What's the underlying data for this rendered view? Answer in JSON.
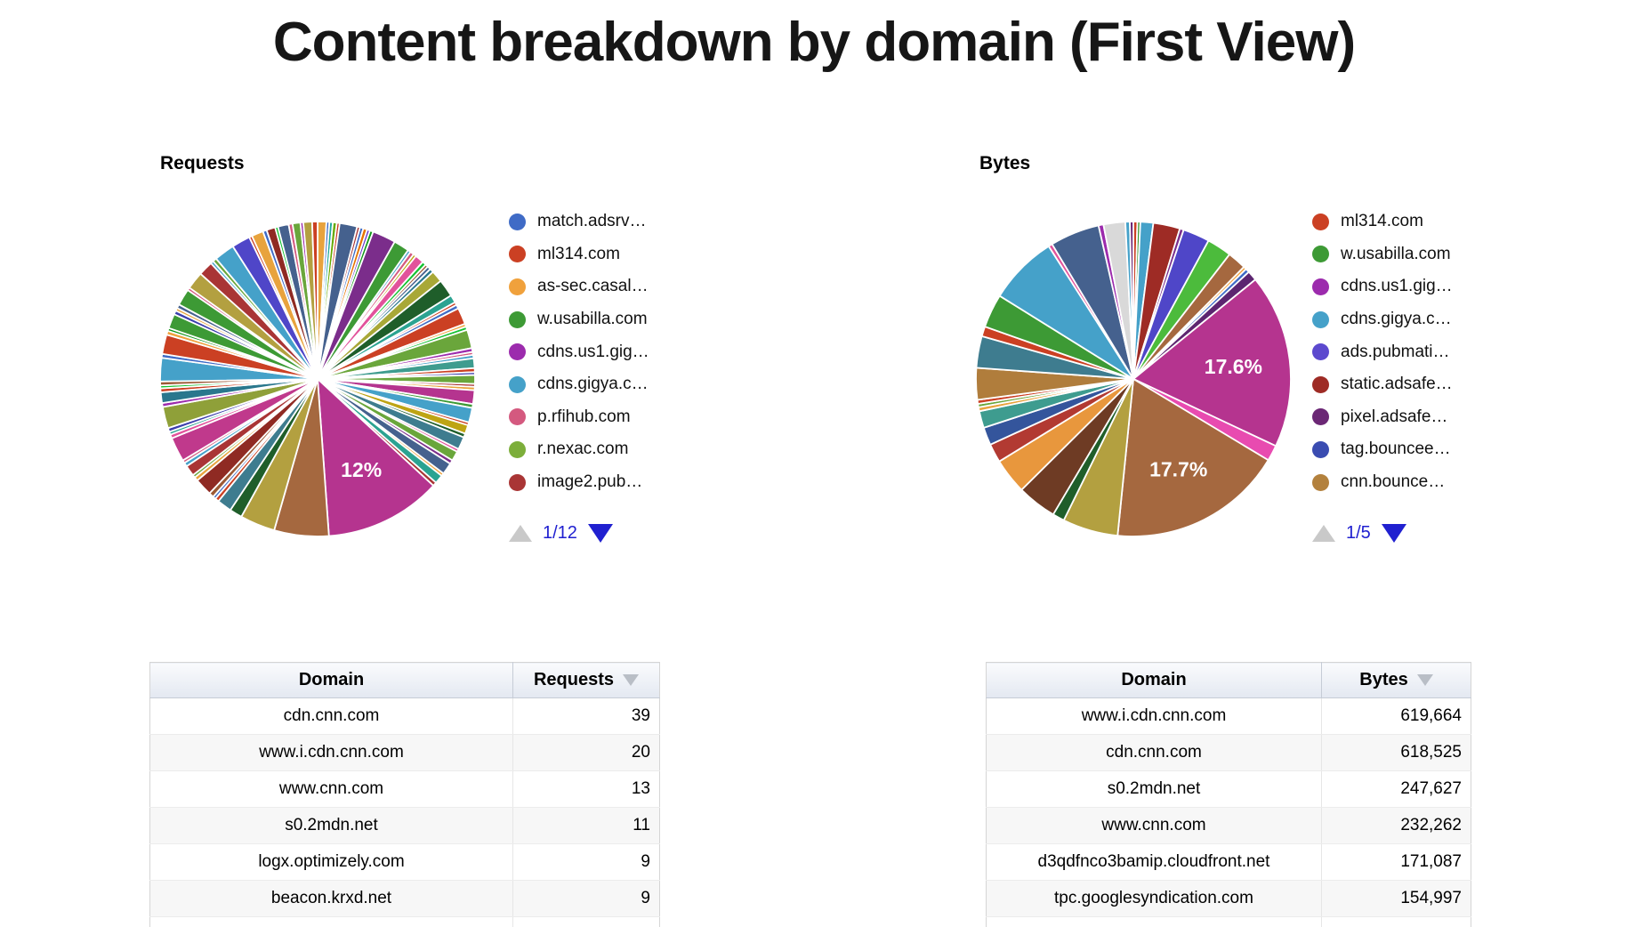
{
  "page_title": "Content breakdown by domain (First View)",
  "colors": {
    "pager_active": "#2020d0",
    "pager_disabled": "#c9c9c9",
    "big_magenta": "#B5348F",
    "big_brown": "#A5683F"
  },
  "chart_data": [
    {
      "type": "pie",
      "title": "Requests",
      "labeled_slices": [
        {
          "label": "12%",
          "color": "#B5348F"
        }
      ],
      "legend": [
        {
          "label": "match.adsrv…",
          "color": "#3F6BC6"
        },
        {
          "label": "ml314.com",
          "color": "#CB4023"
        },
        {
          "label": "as-sec.casal…",
          "color": "#F0A13C"
        },
        {
          "label": "w.usabilla.com",
          "color": "#3D9A35"
        },
        {
          "label": "cdns.us1.gig…",
          "color": "#9C2BAD"
        },
        {
          "label": "cdns.gigya.c…",
          "color": "#45A1C9"
        },
        {
          "label": "p.rfihub.com",
          "color": "#D4597F"
        },
        {
          "label": "r.nexac.com",
          "color": "#7CAE3A"
        },
        {
          "label": "image2.pub…",
          "color": "#A93535"
        }
      ],
      "pager": {
        "label": "1/12",
        "up_enabled": false,
        "down_enabled": true
      },
      "slices": [
        [
          0.9,
          "#E8A33D"
        ],
        [
          0.3,
          "#3F6BC6"
        ],
        [
          0.35,
          "#22AA99"
        ],
        [
          0.4,
          "#66AA00"
        ],
        [
          0.3,
          "#CB4023"
        ],
        [
          1.8,
          "#45618E"
        ],
        [
          0.3,
          "#A93535"
        ],
        [
          0.35,
          "#3F6BC6"
        ],
        [
          0.4,
          "#E67300"
        ],
        [
          0.3,
          "#6633CC"
        ],
        [
          0.35,
          "#109618"
        ],
        [
          2.4,
          "#7B2D8B"
        ],
        [
          1.6,
          "#3D9A35"
        ],
        [
          0.3,
          "#45A1C9"
        ],
        [
          0.4,
          "#D4597F"
        ],
        [
          0.3,
          "#BEA413"
        ],
        [
          0.9,
          "#E2529B"
        ],
        [
          0.4,
          "#16C232"
        ],
        [
          0.3,
          "#9C5935"
        ],
        [
          0.35,
          "#45618E"
        ],
        [
          0.4,
          "#2A778D"
        ],
        [
          1.2,
          "#A8A837"
        ],
        [
          1.8,
          "#1F5E2A"
        ],
        [
          0.8,
          "#2BA391"
        ],
        [
          0.3,
          "#CB4023"
        ],
        [
          0.4,
          "#3F6BC6"
        ],
        [
          1.7,
          "#CB4023"
        ],
        [
          0.3,
          "#F0A13C"
        ],
        [
          0.35,
          "#16C232"
        ],
        [
          1.9,
          "#6AA63B"
        ],
        [
          0.4,
          "#9C2BAD"
        ],
        [
          0.3,
          "#D4597F"
        ],
        [
          0.35,
          "#45A1C9"
        ],
        [
          1.0,
          "#3E9C8F"
        ],
        [
          0.4,
          "#CB4023"
        ],
        [
          0.3,
          "#3B3EAC"
        ],
        [
          0.9,
          "#6AA63B"
        ],
        [
          0.3,
          "#A93535"
        ],
        [
          0.35,
          "#E8A33D"
        ],
        [
          1.4,
          "#B5348F"
        ],
        [
          0.4,
          "#3D9A35"
        ],
        [
          1.5,
          "#45A1C9"
        ],
        [
          0.3,
          "#CB4023"
        ],
        [
          0.9,
          "#BEA413"
        ],
        [
          0.4,
          "#1F5E2A"
        ],
        [
          1.3,
          "#3E7C8F"
        ],
        [
          0.3,
          "#E2529B"
        ],
        [
          1.0,
          "#6AA63B"
        ],
        [
          0.4,
          "#7B2D8B"
        ],
        [
          1.2,
          "#45618E"
        ],
        [
          0.3,
          "#F0A13C"
        ],
        [
          0.9,
          "#2BA391"
        ],
        [
          0.4,
          "#A93535"
        ],
        [
          12,
          "#B5348F",
          "12%"
        ],
        [
          5.6,
          "#A5683F"
        ],
        [
          3.6,
          "#B3A040"
        ],
        [
          1.3,
          "#1F5E2A"
        ],
        [
          1.5,
          "#3E7C8F"
        ],
        [
          0.4,
          "#CB4023"
        ],
        [
          0.3,
          "#3F6BC6"
        ],
        [
          0.5,
          "#9C5935"
        ],
        [
          1.8,
          "#8F2A23"
        ],
        [
          0.4,
          "#E8A33D"
        ],
        [
          0.3,
          "#6AA63B"
        ],
        [
          1.1,
          "#A93535"
        ],
        [
          0.4,
          "#45A1C9"
        ],
        [
          0.3,
          "#D4597F"
        ],
        [
          2.5,
          "#C0398C"
        ],
        [
          0.4,
          "#E2529B"
        ],
        [
          0.3,
          "#2BA391"
        ],
        [
          0.4,
          "#3B3EAC"
        ],
        [
          2.2,
          "#8FA039"
        ],
        [
          0.4,
          "#9C2BAD"
        ],
        [
          1.1,
          "#2A778D"
        ],
        [
          0.4,
          "#CB4023"
        ],
        [
          0.3,
          "#16C232"
        ],
        [
          0.4,
          "#9C5935"
        ],
        [
          2.4,
          "#45A1C9"
        ],
        [
          0.4,
          "#3F6BC6"
        ],
        [
          2.0,
          "#CB4023"
        ],
        [
          0.4,
          "#F0A13C"
        ],
        [
          0.3,
          "#109618"
        ],
        [
          1.5,
          "#3D9A35"
        ],
        [
          0.4,
          "#3B3EAC"
        ],
        [
          0.3,
          "#E8A33D"
        ],
        [
          0.4,
          "#45618E"
        ],
        [
          1.7,
          "#3D9A35"
        ],
        [
          0.3,
          "#D4597F"
        ],
        [
          1.8,
          "#B3A040"
        ],
        [
          1.5,
          "#A93535"
        ],
        [
          0.3,
          "#45A1C9"
        ],
        [
          0.4,
          "#6AA63B"
        ],
        [
          2.1,
          "#45A1C9"
        ],
        [
          1.9,
          "#4F46C8"
        ],
        [
          0.3,
          "#CB4023"
        ],
        [
          1.2,
          "#E8A33D"
        ],
        [
          0.4,
          "#3F6BC6"
        ],
        [
          0.9,
          "#8F2A23"
        ],
        [
          0.3,
          "#16C232"
        ],
        [
          1.1,
          "#45618E"
        ],
        [
          0.4,
          "#D4597F"
        ],
        [
          0.8,
          "#6AA63B"
        ],
        [
          0.3,
          "#9C2BAD"
        ],
        [
          0.9,
          "#B3A040"
        ],
        [
          0.55,
          "#CB4023"
        ]
      ]
    },
    {
      "type": "pie",
      "title": "Bytes",
      "labeled_slices": [
        {
          "label": "17.6%",
          "color": "#B5348F"
        },
        {
          "label": "17.7%",
          "color": "#A5683F"
        }
      ],
      "legend": [
        {
          "label": "ml314.com",
          "color": "#CB4023"
        },
        {
          "label": "w.usabilla.com",
          "color": "#3D9A35"
        },
        {
          "label": "cdns.us1.gig…",
          "color": "#9C2BAD"
        },
        {
          "label": "cdns.gigya.c…",
          "color": "#45A1C9"
        },
        {
          "label": "ads.pubmati…",
          "color": "#5C49CE"
        },
        {
          "label": "static.adsafe…",
          "color": "#9E2B25"
        },
        {
          "label": "pixel.adsafe…",
          "color": "#6B2775"
        },
        {
          "label": "tag.bouncee…",
          "color": "#3A4CB1"
        },
        {
          "label": "cnn.bounce…",
          "color": "#B3813D"
        }
      ],
      "pager": {
        "label": "1/5",
        "up_enabled": false,
        "down_enabled": true
      },
      "slices": [
        [
          0.4,
          "#CB4023"
        ],
        [
          0.3,
          "#3D9A35"
        ],
        [
          1.3,
          "#45A1C9"
        ],
        [
          2.7,
          "#9E2B25"
        ],
        [
          0.4,
          "#7A2E8D"
        ],
        [
          2.7,
          "#4F46C8"
        ],
        [
          2.5,
          "#4CBB3C"
        ],
        [
          1.9,
          "#A5683F"
        ],
        [
          0.3,
          "#F0A13C"
        ],
        [
          0.4,
          "#3F6BC6"
        ],
        [
          1.0,
          "#5C2570"
        ],
        [
          17.6,
          "#B5348F",
          "17.6%"
        ],
        [
          1.6,
          "#E84BB0"
        ],
        [
          17.7,
          "#A5683F",
          "17.7%"
        ],
        [
          5.6,
          "#B3A040"
        ],
        [
          1.2,
          "#1F5E2A"
        ],
        [
          4.0,
          "#6E3B24"
        ],
        [
          3.6,
          "#E8973D"
        ],
        [
          1.9,
          "#B23A32"
        ],
        [
          1.8,
          "#34559C"
        ],
        [
          1.7,
          "#3E9C8F"
        ],
        [
          0.4,
          "#E8A33D"
        ],
        [
          0.35,
          "#6AA63B"
        ],
        [
          0.4,
          "#CB4023"
        ],
        [
          3.2,
          "#B07D3C"
        ],
        [
          3.2,
          "#3E7C8F"
        ],
        [
          1.0,
          "#CB4023"
        ],
        [
          3.4,
          "#3D9A35"
        ],
        [
          7.0,
          "#45A1C9"
        ],
        [
          0.4,
          "#E2529B"
        ],
        [
          5.0,
          "#45618E"
        ],
        [
          0.5,
          "#9C2BAD"
        ],
        [
          2.2,
          "#D9D9D9"
        ],
        [
          0.45,
          "#45A1C9"
        ],
        [
          0.35,
          "#6B2775"
        ]
      ]
    },
    {
      "type": "table",
      "title": "Requests by domain",
      "columns": [
        "Domain",
        "Requests"
      ],
      "sorted_by": "Requests",
      "sort_dir": "desc",
      "rows": [
        [
          "cdn.cnn.com",
          "39"
        ],
        [
          "www.i.cdn.cnn.com",
          "20"
        ],
        [
          "www.cnn.com",
          "13"
        ],
        [
          "s0.2mdn.net",
          "11"
        ],
        [
          "logx.optimizely.com",
          "9"
        ],
        [
          "beacon.krxd.net",
          "9"
        ]
      ]
    },
    {
      "type": "table",
      "title": "Bytes by domain",
      "columns": [
        "Domain",
        "Bytes"
      ],
      "sorted_by": "Bytes",
      "sort_dir": "desc",
      "rows": [
        [
          "www.i.cdn.cnn.com",
          "619,664"
        ],
        [
          "cdn.cnn.com",
          "618,525"
        ],
        [
          "s0.2mdn.net",
          "247,627"
        ],
        [
          "www.cnn.com",
          "232,262"
        ],
        [
          "d3qdfnco3bamip.cloudfront.net",
          "171,087"
        ],
        [
          "tpc.googlesyndication.com",
          "154,997"
        ]
      ]
    }
  ]
}
